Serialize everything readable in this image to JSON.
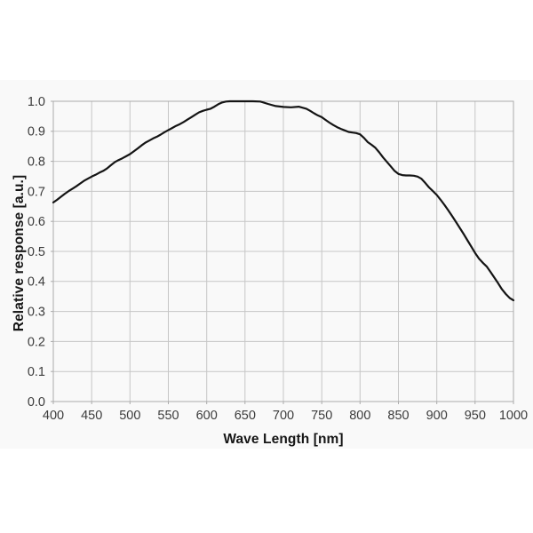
{
  "chart": {
    "page_background": "#ffffff",
    "band_background": "#f9f9f9",
    "grid_color": "#c6c6c6",
    "frame_color": "#ababab",
    "line_color": "#141414",
    "tick_text_color": "#3c3c3c",
    "title_text_color": "#161616"
  },
  "chart_data": {
    "type": "line",
    "title": "",
    "xlabel": "Wave Length [nm]",
    "ylabel": "Relative response [a.u.]",
    "xlim": [
      400,
      1000
    ],
    "ylim": [
      0.0,
      1.0
    ],
    "grid": true,
    "legend_position": "none",
    "x_tick_labels": [
      "400",
      "450",
      "500",
      "550",
      "600",
      "650",
      "700",
      "750",
      "800",
      "850",
      "900",
      "950",
      "1000"
    ],
    "y_tick_labels": [
      "0.0",
      "0.1",
      "0.2",
      "0.3",
      "0.4",
      "0.5",
      "0.6",
      "0.7",
      "0.8",
      "0.9",
      "1.0"
    ],
    "series": [
      {
        "name": "relative-response",
        "x": [
          400,
          405,
          410,
          415,
          420,
          425,
          430,
          435,
          440,
          445,
          450,
          455,
          460,
          465,
          470,
          475,
          480,
          485,
          490,
          495,
          500,
          505,
          510,
          515,
          520,
          525,
          530,
          535,
          540,
          545,
          550,
          555,
          560,
          565,
          570,
          575,
          580,
          585,
          590,
          595,
          600,
          605,
          610,
          615,
          620,
          625,
          630,
          640,
          650,
          660,
          670,
          680,
          690,
          700,
          710,
          720,
          730,
          735,
          740,
          745,
          750,
          755,
          760,
          765,
          770,
          775,
          780,
          785,
          790,
          795,
          800,
          805,
          810,
          815,
          820,
          825,
          830,
          835,
          840,
          845,
          850,
          855,
          860,
          865,
          870,
          875,
          880,
          885,
          890,
          895,
          900,
          905,
          910,
          915,
          920,
          925,
          930,
          935,
          940,
          945,
          950,
          955,
          960,
          965,
          970,
          975,
          980,
          985,
          990,
          995,
          1000
        ],
        "values": [
          0.663,
          0.672,
          0.682,
          0.692,
          0.701,
          0.709,
          0.717,
          0.726,
          0.735,
          0.742,
          0.749,
          0.755,
          0.762,
          0.768,
          0.776,
          0.787,
          0.797,
          0.804,
          0.81,
          0.817,
          0.824,
          0.833,
          0.843,
          0.853,
          0.862,
          0.869,
          0.876,
          0.882,
          0.889,
          0.897,
          0.904,
          0.911,
          0.918,
          0.924,
          0.931,
          0.939,
          0.947,
          0.955,
          0.963,
          0.968,
          0.972,
          0.975,
          0.982,
          0.99,
          0.996,
          0.999,
          1.0,
          1.0,
          1.0,
          1.0,
          0.999,
          0.991,
          0.984,
          0.981,
          0.98,
          0.982,
          0.975,
          0.968,
          0.96,
          0.953,
          0.947,
          0.938,
          0.929,
          0.921,
          0.914,
          0.908,
          0.903,
          0.898,
          0.896,
          0.894,
          0.89,
          0.878,
          0.864,
          0.855,
          0.845,
          0.83,
          0.813,
          0.798,
          0.783,
          0.768,
          0.758,
          0.754,
          0.753,
          0.753,
          0.752,
          0.749,
          0.742,
          0.728,
          0.713,
          0.701,
          0.688,
          0.672,
          0.655,
          0.637,
          0.618,
          0.598,
          0.578,
          0.558,
          0.537,
          0.516,
          0.495,
          0.476,
          0.462,
          0.45,
          0.432,
          0.413,
          0.394,
          0.374,
          0.358,
          0.345,
          0.337
        ]
      }
    ]
  }
}
